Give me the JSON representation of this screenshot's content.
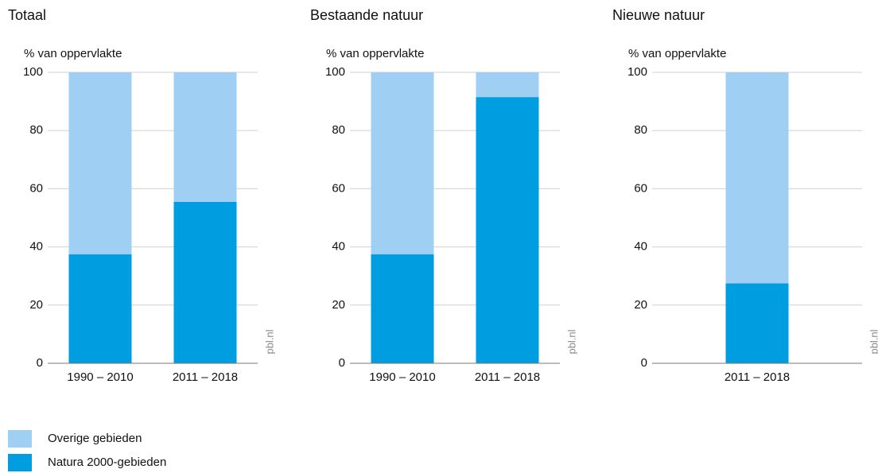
{
  "chart_data": [
    {
      "type": "stacked_bar",
      "title": "Totaal",
      "y_label": "% van oppervlakte",
      "source": "pbl.nl",
      "categories": [
        "1990 – 2010",
        "2011 – 2018"
      ],
      "series": [
        {
          "values": [
            62.5,
            44.5
          ]
        },
        {
          "values": [
            37.5,
            55.5
          ]
        }
      ],
      "ylim": [
        0,
        100
      ],
      "yticks": [
        0,
        20,
        40,
        60,
        80,
        100
      ],
      "grid": true
    },
    {
      "type": "stacked_bar",
      "title": "Bestaande natuur",
      "y_label": "% van oppervlakte",
      "source": "pbl.nl",
      "categories": [
        "1990 – 2010",
        "2011 – 2018"
      ],
      "series": [
        {
          "values": [
            62.5,
            8.5
          ]
        },
        {
          "values": [
            37.5,
            91.5
          ]
        }
      ],
      "ylim": [
        0,
        100
      ],
      "yticks": [
        0,
        20,
        40,
        60,
        80,
        100
      ],
      "grid": true
    },
    {
      "type": "stacked_bar",
      "title": "Nieuwe natuur",
      "y_label": "% van oppervlakte",
      "source": "pbl.nl",
      "categories": [
        "2011 – 2018"
      ],
      "series": [
        {
          "values": [
            72.5
          ]
        },
        {
          "values": [
            27.5
          ]
        }
      ],
      "ylim": [
        0,
        100
      ],
      "yticks": [
        0,
        20,
        40,
        60,
        80,
        100
      ],
      "grid": true
    }
  ],
  "legend": [
    {
      "name": "Overige gebieden",
      "color": "#9fcff3"
    },
    {
      "name": "Natura 2000-gebieden",
      "color": "#009ee0"
    }
  ]
}
